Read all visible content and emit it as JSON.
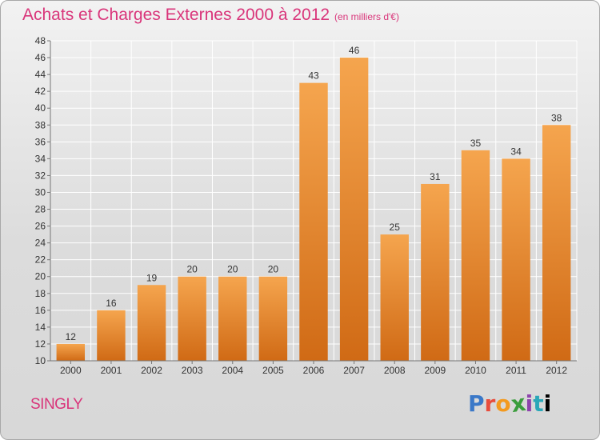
{
  "header": {
    "title": "Achats et Charges Externes 2000 à 2012",
    "subtitle": "(en milliers d'€)"
  },
  "footer": {
    "commune": "SINGLY",
    "brand_letters": [
      "P",
      "r",
      "o",
      "x",
      "i",
      "t",
      "i"
    ]
  },
  "colors": {
    "bar_top": "#f5a54e",
    "bar_bottom": "#d06a15",
    "title": "#d9357a",
    "grid": "#ffffff",
    "axis": "#777777"
  },
  "chart_data": {
    "type": "bar",
    "title": "Achats et Charges Externes 2000 à 2012",
    "subtitle": "(en milliers d'€)",
    "xlabel": "",
    "ylabel": "",
    "categories": [
      "2000",
      "2001",
      "2002",
      "2003",
      "2004",
      "2005",
      "2006",
      "2007",
      "2008",
      "2009",
      "2010",
      "2011",
      "2012"
    ],
    "values": [
      12,
      16,
      19,
      20,
      20,
      20,
      43,
      46,
      25,
      31,
      35,
      34,
      38
    ],
    "ylim": [
      10,
      48
    ],
    "ytick_step": 2,
    "grid": true,
    "legend": "none"
  }
}
